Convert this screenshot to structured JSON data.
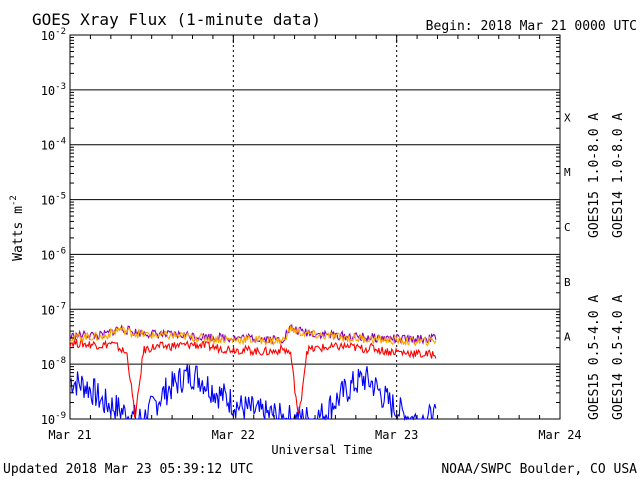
{
  "chart_data": {
    "type": "line",
    "title": "GOES Xray Flux (1-minute data)",
    "begin_label": "Begin:  2018 Mar 21 0000 UTC",
    "xlabel": "Universal Time",
    "ylabel": "Watts m",
    "ylabel_exponent": "-2",
    "y_scale": "log",
    "ylim": [
      1e-09,
      0.01
    ],
    "x_unit": "days since 2018 Mar 21 0000 UTC",
    "xlim": [
      0,
      3
    ],
    "x_ticks": [
      {
        "value": 0,
        "label": "Mar 21"
      },
      {
        "value": 1,
        "label": "Mar 22"
      },
      {
        "value": 2,
        "label": "Mar 23"
      },
      {
        "value": 3,
        "label": "Mar 24"
      }
    ],
    "y_ticks": [
      {
        "exp": -2,
        "base": "10",
        "power": "-2"
      },
      {
        "exp": -3,
        "base": "10",
        "power": "-3"
      },
      {
        "exp": -4,
        "base": "10",
        "power": "-4"
      },
      {
        "exp": -5,
        "base": "10",
        "power": "-5"
      },
      {
        "exp": -6,
        "base": "10",
        "power": "-6"
      },
      {
        "exp": -7,
        "base": "10",
        "power": "-7"
      },
      {
        "exp": -8,
        "base": "10",
        "power": "-8"
      },
      {
        "exp": -9,
        "base": "10",
        "power": "-9"
      }
    ],
    "flare_classes": [
      {
        "label": "X",
        "exp": -4
      },
      {
        "label": "M",
        "exp": -5
      },
      {
        "label": "C",
        "exp": -6
      },
      {
        "label": "B",
        "exp": -7
      },
      {
        "label": "A",
        "exp": -8
      }
    ],
    "grid": true,
    "legend_position": "right",
    "legend_top": [
      {
        "name": "GOES15 1.0-8.0 A",
        "color": "#ff0000"
      },
      {
        "name": "GOES14 1.0-8.0 A",
        "color": "#ffa500"
      }
    ],
    "legend_bottom": [
      {
        "name": "GOES15 0.5-4.0 A",
        "color": "#0000ff"
      },
      {
        "name": "GOES14 0.5-4.0 A",
        "color": "#8000c0"
      }
    ],
    "series": [
      {
        "name": "GOES15 0.5-4.0 A",
        "color": "#0000ff",
        "x": [
          0,
          0.05,
          0.1,
          0.15,
          0.2,
          0.25,
          0.3,
          0.35,
          0.4,
          0.45,
          0.5,
          0.55,
          0.6,
          0.65,
          0.7,
          0.75,
          0.8,
          0.85,
          0.9,
          0.95,
          1.0,
          1.05,
          1.1,
          1.15,
          1.2,
          1.25,
          1.3,
          1.35,
          1.4,
          1.45,
          1.5,
          1.55,
          1.6,
          1.65,
          1.7,
          1.75,
          1.8,
          1.85,
          1.9,
          1.95,
          2.0,
          2.05,
          2.1,
          2.15,
          2.2,
          2.24
        ],
        "y": [
          5e-09,
          4.5e-09,
          4e-09,
          3e-09,
          2e-09,
          1.8e-09,
          1.5e-09,
          1.2e-09,
          1e-09,
          1e-09,
          1.5e-09,
          2.5e-09,
          3.5e-09,
          4.5e-09,
          6e-09,
          6.5e-09,
          5.5e-09,
          4e-09,
          3e-09,
          2.5e-09,
          2e-09,
          1.6e-09,
          1.5e-09,
          1.3e-09,
          1.2e-09,
          1.2e-09,
          1e-09,
          1e-09,
          1e-09,
          1e-09,
          1e-09,
          1.2e-09,
          1.8e-09,
          2.5e-09,
          3.5e-09,
          4.5e-09,
          5.5e-09,
          4.5e-09,
          3e-09,
          2e-09,
          1.5e-09,
          1.2e-09,
          1e-09,
          1e-09,
          1e-09,
          1e-09
        ]
      },
      {
        "name": "GOES15 1.0-8.0 A",
        "color": "#ff0000",
        "x": [
          0,
          0.05,
          0.1,
          0.15,
          0.2,
          0.25,
          0.3,
          0.35,
          0.4,
          0.45,
          0.5,
          0.55,
          0.6,
          0.65,
          0.7,
          0.75,
          0.8,
          0.85,
          0.9,
          0.95,
          1.0,
          1.05,
          1.1,
          1.15,
          1.2,
          1.25,
          1.3,
          1.35,
          1.4,
          1.45,
          1.5,
          1.55,
          1.6,
          1.65,
          1.7,
          1.75,
          1.8,
          1.85,
          1.9,
          1.95,
          2.0,
          2.05,
          2.1,
          2.15,
          2.2,
          2.24
        ],
        "y": [
          2.5e-08,
          2.4e-08,
          2.3e-08,
          2.3e-08,
          2.2e-08,
          2.4e-08,
          2e-08,
          1.5e-08,
          1e-09,
          1.8e-08,
          2e-08,
          2.1e-08,
          2.1e-08,
          2.2e-08,
          2.2e-08,
          2.3e-08,
          2.2e-08,
          2.1e-08,
          2e-08,
          1.9e-08,
          1.9e-08,
          1.8e-08,
          1.8e-08,
          1.7e-08,
          1.7e-08,
          1.7e-08,
          1.9e-08,
          1.6e-08,
          1e-09,
          1.8e-08,
          1.9e-08,
          2e-08,
          2e-08,
          2.1e-08,
          2.1e-08,
          2e-08,
          1.9e-08,
          2e-08,
          1.8e-08,
          1.7e-08,
          1.7e-08,
          1.6e-08,
          1.6e-08,
          1.5e-08,
          1.5e-08,
          1.5e-08
        ]
      },
      {
        "name": "GOES14 0.5-4.0 A",
        "color": "#8000c0",
        "x": [
          0,
          0.1,
          0.2,
          0.3,
          0.35,
          0.4,
          0.5,
          0.6,
          0.7,
          0.8,
          0.9,
          1.0,
          1.1,
          1.2,
          1.3,
          1.35,
          1.4,
          1.5,
          1.6,
          1.7,
          1.8,
          1.9,
          2.0,
          2.1,
          2.2,
          2.24
        ],
        "y": [
          3.2e-08,
          3.4e-08,
          3.3e-08,
          4.5e-08,
          4.2e-08,
          3.8e-08,
          3.6e-08,
          3.4e-08,
          3.4e-08,
          3.2e-08,
          3.1e-08,
          3e-08,
          3e-08,
          2.9e-08,
          2.8e-08,
          4.6e-08,
          4e-08,
          3.6e-08,
          3.4e-08,
          3.2e-08,
          3.1e-08,
          3e-08,
          2.9e-08,
          2.8e-08,
          2.9e-08,
          3.1e-08
        ]
      },
      {
        "name": "GOES14 1.0-8.0 A",
        "color": "#ffa500",
        "x": [
          0,
          0.1,
          0.2,
          0.3,
          0.35,
          0.4,
          0.5,
          0.6,
          0.7,
          0.8,
          0.9,
          1.0,
          1.1,
          1.2,
          1.3,
          1.35,
          1.4,
          1.5,
          1.6,
          1.7,
          1.8,
          1.9,
          2.0,
          2.1,
          2.2,
          2.24
        ],
        "y": [
          3e-08,
          3.2e-08,
          3.1e-08,
          4.3e-08,
          4e-08,
          3.6e-08,
          3.4e-08,
          3.3e-08,
          3.2e-08,
          3e-08,
          2.9e-08,
          2.8e-08,
          2.8e-08,
          2.7e-08,
          2.6e-08,
          4.4e-08,
          3.8e-08,
          3.4e-08,
          3.2e-08,
          3e-08,
          2.9e-08,
          2.8e-08,
          2.7e-08,
          2.6e-08,
          2.6e-08,
          2.8e-08
        ]
      }
    ]
  },
  "footer": {
    "updated": "Updated 2018 Mar 23 05:39:12 UTC",
    "credit": "NOAA/SWPC Boulder, CO USA"
  }
}
